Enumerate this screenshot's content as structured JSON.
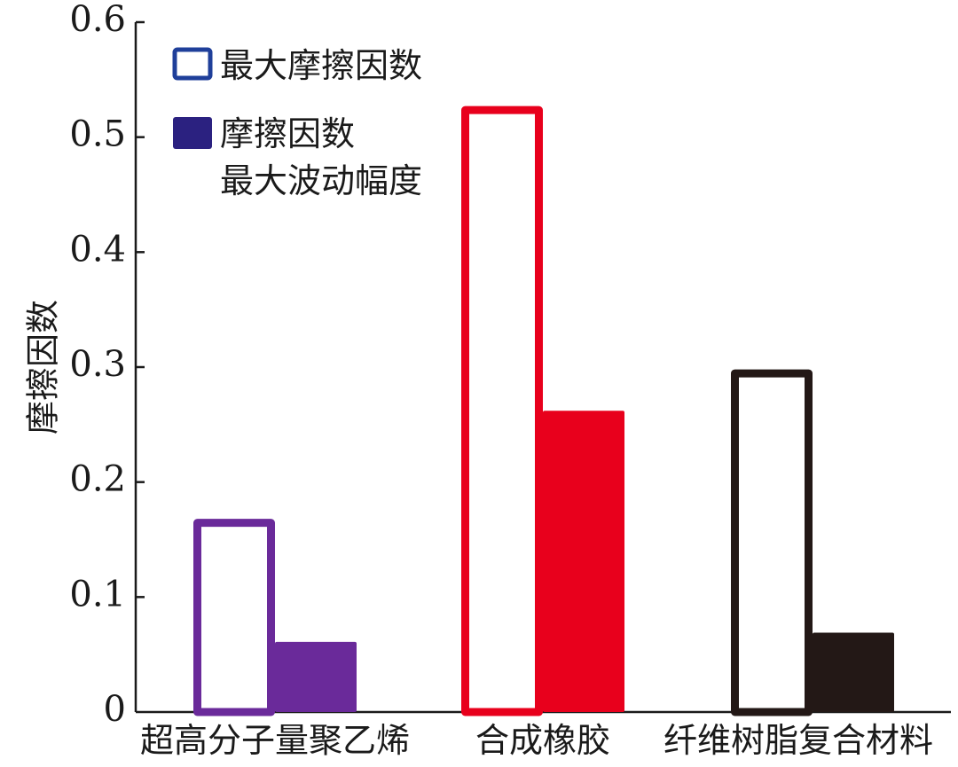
{
  "chart_data": {
    "type": "bar",
    "title": "",
    "xlabel": "",
    "ylabel": "摩擦因数",
    "ylim": [
      0,
      0.6
    ],
    "yticks": [
      0,
      0.1,
      0.2,
      0.3,
      0.4,
      0.5,
      0.6
    ],
    "ytick_labels": [
      "0",
      "0.1",
      "0.2",
      "0.3",
      "0.4",
      "0.5",
      "0.6"
    ],
    "grid": false,
    "legend_position": "top-left",
    "categories": [
      "超高分子量聚乙烯",
      "合成橡胶",
      "纤维树脂复合材料"
    ],
    "category_colors": [
      "#6a2a9a",
      "#e8001c",
      "#231816"
    ],
    "series": [
      {
        "name": "最大摩擦因数",
        "style": "outline",
        "values": [
          0.168,
          0.527,
          0.298
        ]
      },
      {
        "name": "摩擦因数最大波动幅度",
        "style": "filled",
        "values": [
          0.061,
          0.262,
          0.069
        ]
      }
    ],
    "legend": [
      {
        "lines": [
          "最大摩擦因数"
        ],
        "style": "outline",
        "color": "#1f3f9a"
      },
      {
        "lines": [
          "摩擦因数",
          "最大波动幅度"
        ],
        "style": "filled",
        "color": "#2b2180"
      }
    ]
  }
}
